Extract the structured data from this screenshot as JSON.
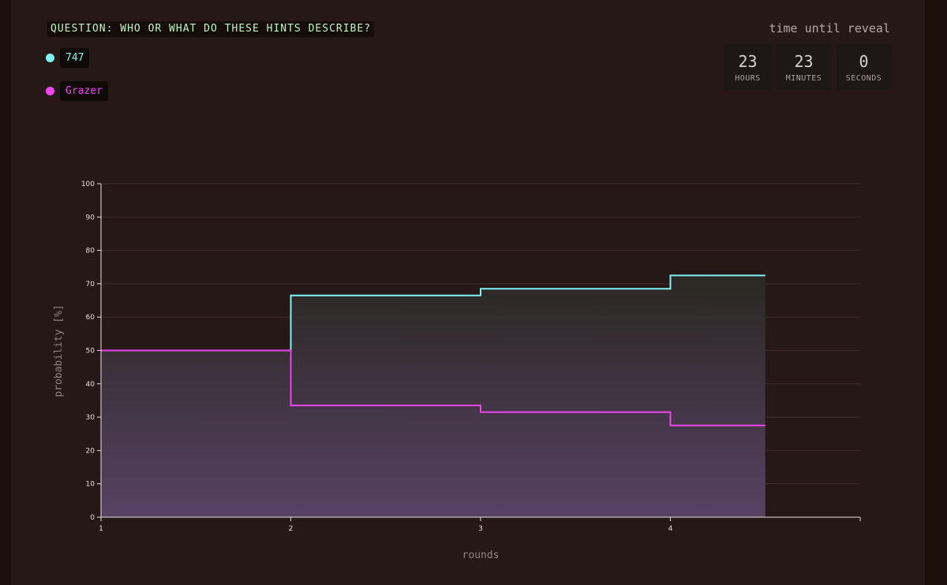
{
  "question": "QUESTION: WHO OR WHAT DO THESE HINTS DESCRIBE?",
  "legend": [
    {
      "label": "747",
      "color": "#7ff3f3"
    },
    {
      "label": "Grazer",
      "color": "#ee44ee"
    }
  ],
  "timer": {
    "title": "time until reveal",
    "units": [
      {
        "value": "23",
        "label": "HOURS"
      },
      {
        "value": "23",
        "label": "MINUTES"
      },
      {
        "value": "0",
        "label": "SECONDS"
      }
    ]
  },
  "chart_data": {
    "type": "line",
    "step": true,
    "xlabel": "rounds",
    "ylabel": "probability [%]",
    "xlim": [
      1,
      5
    ],
    "ylim": [
      0,
      100
    ],
    "x_ticks": [
      1,
      2,
      3,
      4
    ],
    "y_ticks": [
      0,
      10,
      20,
      30,
      40,
      50,
      60,
      70,
      80,
      90,
      100
    ],
    "x_end": 4.5,
    "grid": true,
    "series": [
      {
        "name": "747",
        "color": "#7ff3f3",
        "x": [
          1,
          2,
          3,
          4
        ],
        "values": [
          50,
          66.5,
          68.5,
          72.5
        ]
      },
      {
        "name": "Grazer",
        "color": "#ee44ee",
        "x": [
          1,
          2,
          3,
          4
        ],
        "values": [
          50,
          33.5,
          31.5,
          27.5
        ]
      }
    ]
  }
}
